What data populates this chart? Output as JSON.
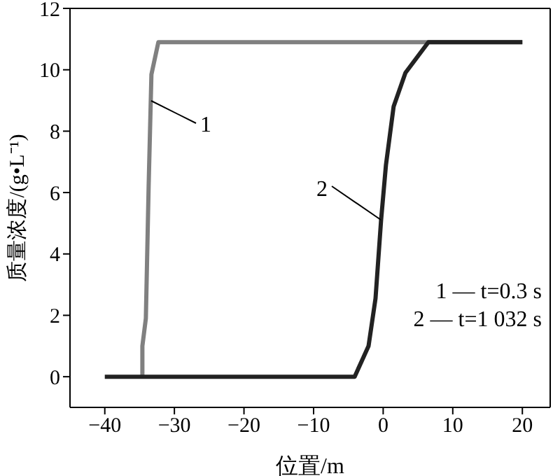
{
  "chart_data": {
    "type": "line",
    "xlabel": "位置/m",
    "ylabel": "质量浓度/(g•L⁻¹)",
    "xlim": [
      -45,
      24
    ],
    "xticks": [
      -40,
      -30,
      -20,
      -10,
      0,
      10,
      20
    ],
    "ylim": [
      -1,
      12
    ],
    "yticks": [
      0,
      2,
      4,
      6,
      8,
      10,
      12
    ],
    "marker": "none",
    "line_style": "solid",
    "series": [
      {
        "color": "#808080",
        "x": [
          -34.6,
          -34.6,
          -34.1,
          -33.7,
          -33.3,
          -32.3,
          20
        ],
        "values": [
          0,
          1.0,
          1.9,
          6.2,
          9.85,
          10.9,
          10.9
        ]
      },
      {
        "color": "#222222",
        "x": [
          -40,
          -4.1,
          -2.1,
          -1.1,
          -0.3,
          0.4,
          1.5,
          3.2,
          6.5,
          20
        ],
        "values": [
          0,
          0,
          1.0,
          2.55,
          5.1,
          6.9,
          8.8,
          9.9,
          10.9,
          10.9
        ]
      }
    ],
    "annotations": [
      "1",
      "2",
      "1 — t=0.3 s",
      "2 — t=1 032 s"
    ]
  }
}
